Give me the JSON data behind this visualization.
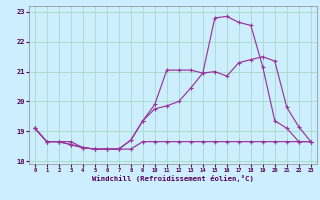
{
  "xlabel": "Windchill (Refroidissement éolien,°C)",
  "bg_color": "#cceeff",
  "grid_color": "#aaddcc",
  "line_color": "#993399",
  "xlim": [
    -0.5,
    23.5
  ],
  "ylim": [
    17.9,
    23.2
  ],
  "yticks": [
    18,
    19,
    20,
    21,
    22,
    23
  ],
  "xticks": [
    0,
    1,
    2,
    3,
    4,
    5,
    6,
    7,
    8,
    9,
    10,
    11,
    12,
    13,
    14,
    15,
    16,
    17,
    18,
    19,
    20,
    21,
    22,
    23
  ],
  "line1_x": [
    0,
    1,
    2,
    3,
    4,
    5,
    6,
    7,
    8,
    9,
    10,
    11,
    12,
    13,
    14,
    15,
    16,
    17,
    18,
    19,
    20,
    21,
    22,
    23
  ],
  "line1_y": [
    19.1,
    18.65,
    18.65,
    18.65,
    18.45,
    18.4,
    18.4,
    18.4,
    18.4,
    18.65,
    18.65,
    18.65,
    18.65,
    18.65,
    18.65,
    18.65,
    18.65,
    18.65,
    18.65,
    18.65,
    18.65,
    18.65,
    18.65,
    18.65
  ],
  "line2_x": [
    0,
    1,
    2,
    3,
    4,
    5,
    6,
    7,
    8,
    9,
    10,
    11,
    12,
    13,
    14,
    15,
    16,
    17,
    18,
    19,
    20,
    21,
    22,
    23
  ],
  "line2_y": [
    19.1,
    18.65,
    18.65,
    18.55,
    18.45,
    18.4,
    18.4,
    18.4,
    18.7,
    19.35,
    19.9,
    21.05,
    21.05,
    21.05,
    20.95,
    21.0,
    20.85,
    21.3,
    21.4,
    21.5,
    21.35,
    19.8,
    19.15,
    18.65
  ],
  "line3_x": [
    0,
    1,
    2,
    3,
    4,
    5,
    6,
    7,
    8,
    9,
    10,
    11,
    12,
    13,
    14,
    15,
    16,
    17,
    18,
    19,
    20,
    21,
    22,
    23
  ],
  "line3_y": [
    19.1,
    18.65,
    18.65,
    18.55,
    18.45,
    18.4,
    18.4,
    18.4,
    18.7,
    19.35,
    19.75,
    19.85,
    20.0,
    20.45,
    20.95,
    22.8,
    22.85,
    22.65,
    22.55,
    21.15,
    19.35,
    19.1,
    18.65,
    18.65
  ]
}
